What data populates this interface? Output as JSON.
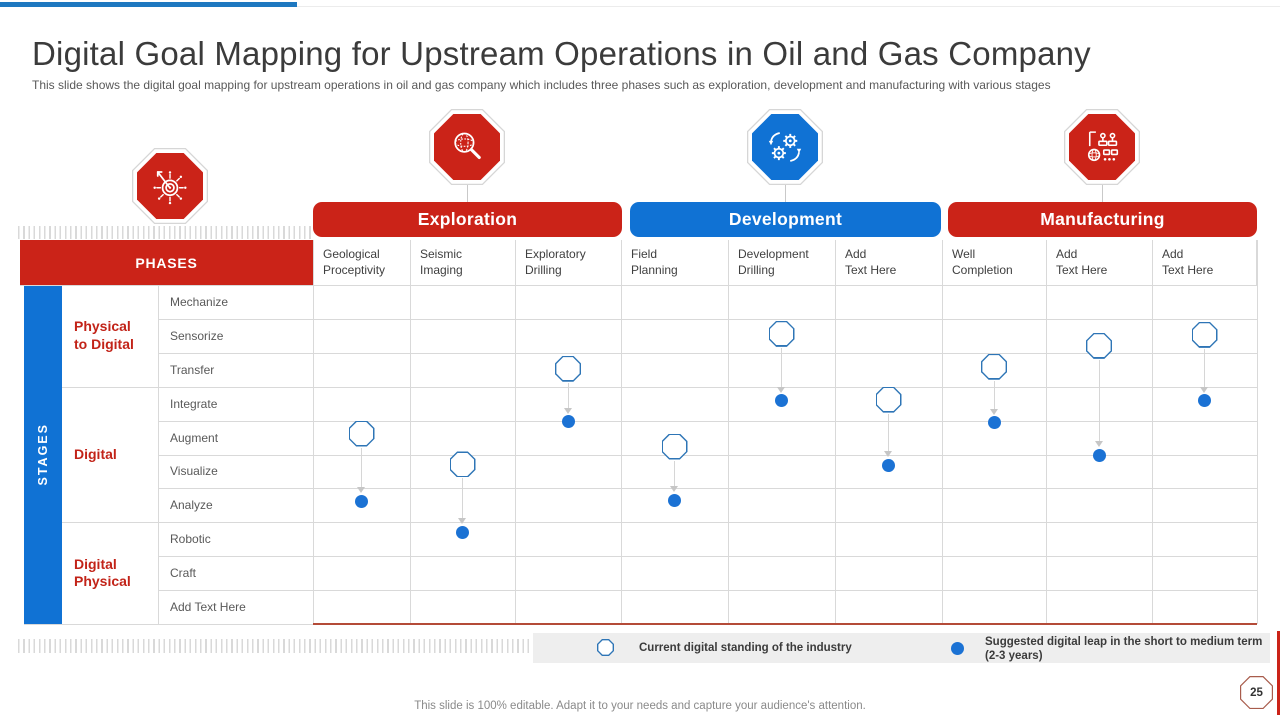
{
  "slide": {
    "title": "Digital Goal Mapping for Upstream Operations in Oil and Gas Company",
    "subtitle": "This slide shows the digital goal mapping for upstream operations in oil and gas company which includes three phases such as exploration, development and manufacturing with various stages",
    "footer_note": "This slide is 100% editable. Adapt it to your needs and capture your audience's attention.",
    "page_number": "25"
  },
  "colors": {
    "red": "#CB2318",
    "blue": "#1072D4",
    "top_bar_blue": "#1E78C0",
    "marker_outline": "#2E75B6",
    "dot_fill": "#1B72D4",
    "arrow_gray": "#C6C6C6",
    "grid_line": "#D9D9D9",
    "text_dark": "#3F3F3F",
    "text_gray": "#595959",
    "group_label_red": "#C22318",
    "legend_bg": "#EEEEEE",
    "table_bottom_line": "#B44B38",
    "page_badge_outline": "#A85C4C",
    "footer_gray": "#8A8A8A"
  },
  "header_icon": {
    "name": "target-circuit-icon"
  },
  "phases": [
    {
      "label": "Exploration",
      "color": "#CB2318",
      "icon": "magnifier-globe-icon"
    },
    {
      "label": "Development",
      "color": "#1072D4",
      "icon": "gears-sync-icon"
    },
    {
      "label": "Manufacturing",
      "color": "#CB2318",
      "icon": "factory-automation-icon"
    }
  ],
  "table": {
    "corner_label": "PHASES",
    "stages_label": "STAGES",
    "columns": [
      "Geological\nProceptivity",
      "Seismic\nImaging",
      "Exploratory\nDrilling",
      "Field\nPlanning",
      "Development\nDrilling",
      "Add\nText Here",
      "Well\nCompletion",
      "Add\nText Here",
      "Add\nText Here"
    ],
    "groups": [
      {
        "label": "Physical\nto Digital",
        "from_row": 0,
        "to_row": 2
      },
      {
        "label": "Digital",
        "from_row": 3,
        "to_row": 6
      },
      {
        "label": "Digital\nPhysical",
        "from_row": 7,
        "to_row": 9
      }
    ],
    "rows": [
      "Mechanize",
      "Sensorize",
      "Transfer",
      "Integrate",
      "Augment",
      "Visualize",
      "Analyze",
      "Robotic",
      "Craft",
      "Add Text Here"
    ]
  },
  "legend": {
    "current_label": "Current digital standing of the industry",
    "suggested_label": "Suggested digital leap in the short to medium term (2-3 years)"
  },
  "chart_data": {
    "type": "table",
    "title": "Digital goal mapping matrix: phases (columns) vs stages (rows)",
    "x_categories": [
      "Geological Proceptivity",
      "Seismic Imaging",
      "Exploratory Drilling",
      "Field Planning",
      "Development Drilling",
      "Add Text Here",
      "Well Completion",
      "Add Text Here",
      "Add Text Here"
    ],
    "y_categories": [
      "Mechanize",
      "Sensorize",
      "Transfer",
      "Integrate",
      "Augment",
      "Visualize",
      "Analyze",
      "Robotic",
      "Craft",
      "Add Text Here"
    ],
    "markers": [
      {
        "col": 0,
        "column": "Geological Proceptivity",
        "current": "Augment",
        "current_row": 4,
        "current_dy": -4,
        "suggested": "Analyze",
        "suggested_row": 6,
        "suggested_dy": -4
      },
      {
        "col": 1,
        "column": "Seismic Imaging",
        "current": "Visualize",
        "current_row": 5,
        "current_dy": -7,
        "suggested": "Robotic",
        "suggested_row": 7,
        "suggested_dy": -7
      },
      {
        "col": 2,
        "column": "Exploratory Drilling",
        "current": "Transfer",
        "current_row": 2,
        "current_dy": -1,
        "suggested": "Augment",
        "suggested_row": 4,
        "suggested_dy": -16
      },
      {
        "col": 3,
        "column": "Field Planning",
        "current": "Augment",
        "current_row": 4,
        "current_dy": 9,
        "suggested": "Analyze",
        "suggested_row": 6,
        "suggested_dy": -5
      },
      {
        "col": 4,
        "column": "Development Drilling",
        "current": "Sensorize",
        "current_row": 1,
        "current_dy": -2,
        "suggested": "Integrate",
        "suggested_row": 3,
        "suggested_dy": -3
      },
      {
        "col": 5,
        "column": "Add Text Here",
        "current": "Integrate",
        "current_row": 3,
        "current_dy": -4,
        "suggested": "Visualize",
        "suggested_row": 5,
        "suggested_dy": -6
      },
      {
        "col": 6,
        "column": "Well Completion",
        "current": "Transfer",
        "current_row": 2,
        "current_dy": -3,
        "suggested": "Augment",
        "suggested_row": 4,
        "suggested_dy": -15
      },
      {
        "col": 7,
        "column": "Add Text Here",
        "current": "Sensorize",
        "current_row": 1,
        "current_dy": 10,
        "suggested": "Visualize",
        "suggested_row": 5,
        "suggested_dy": -16
      },
      {
        "col": 8,
        "column": "Add Text Here",
        "current": "Sensorize",
        "current_row": 1,
        "current_dy": -1,
        "suggested": "Integrate",
        "suggested_row": 3,
        "suggested_dy": -3
      }
    ]
  }
}
